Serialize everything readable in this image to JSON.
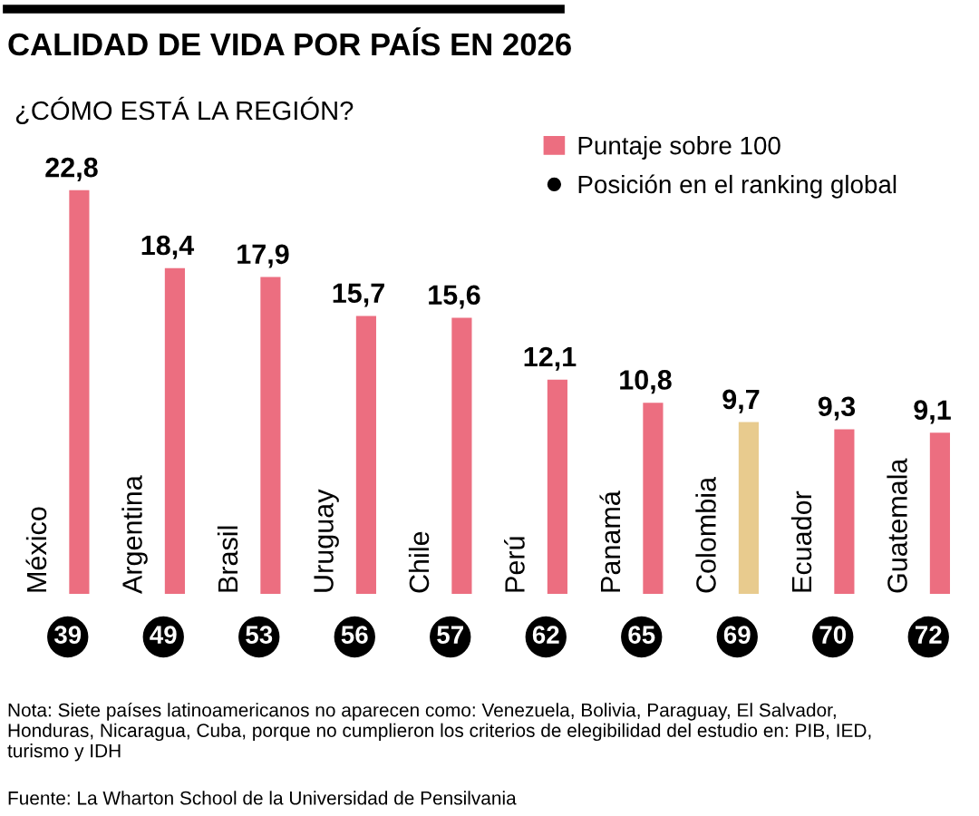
{
  "chart_data": {
    "type": "bar",
    "title": "CALIDAD DE VIDA POR PAÍS EN 2026",
    "subtitle": "¿CÓMO ESTÁ LA REGIÓN?",
    "categories": [
      "México",
      "Argentina",
      "Brasil",
      "Uruguay",
      "Chile",
      "Perú",
      "Panamá",
      "Colombia",
      "Ecuador",
      "Guatemala"
    ],
    "series": [
      {
        "name": "Puntaje sobre 100",
        "color": "#ec6e80",
        "values": [
          22.8,
          18.4,
          17.9,
          15.7,
          15.6,
          12.1,
          10.8,
          9.7,
          9.3,
          9.1
        ],
        "colors": [
          "#ec6e80",
          "#ec6e80",
          "#ec6e80",
          "#ec6e80",
          "#ec6e80",
          "#ec6e80",
          "#ec6e80",
          "#e8cb8e",
          "#ec6e80",
          "#ec6e80"
        ],
        "value_labels": [
          "22,8",
          "18,4",
          "17,9",
          "15,7",
          "15,6",
          "12,1",
          "10,8",
          "9,7",
          "9,3",
          "9,1"
        ]
      }
    ],
    "legend": "top right",
    "annotations": [
      "Nota: Siete países latinoamericanos no aparecen como: Venezuela, Bolivia, Paraguay, El Salvador, Honduras, Nicaragua, Cuba, porque no cumplieron los criterios de elegibilidad del estudio en: PIB, IED, turismo y IDH",
      "Fuente: La Wharton School de la Universidad de Pensilvania",
      "Posición en el ranking global",
      "39",
      "49",
      "53",
      "56",
      "57",
      "62",
      "65",
      "69",
      "70",
      "72"
    ]
  }
}
